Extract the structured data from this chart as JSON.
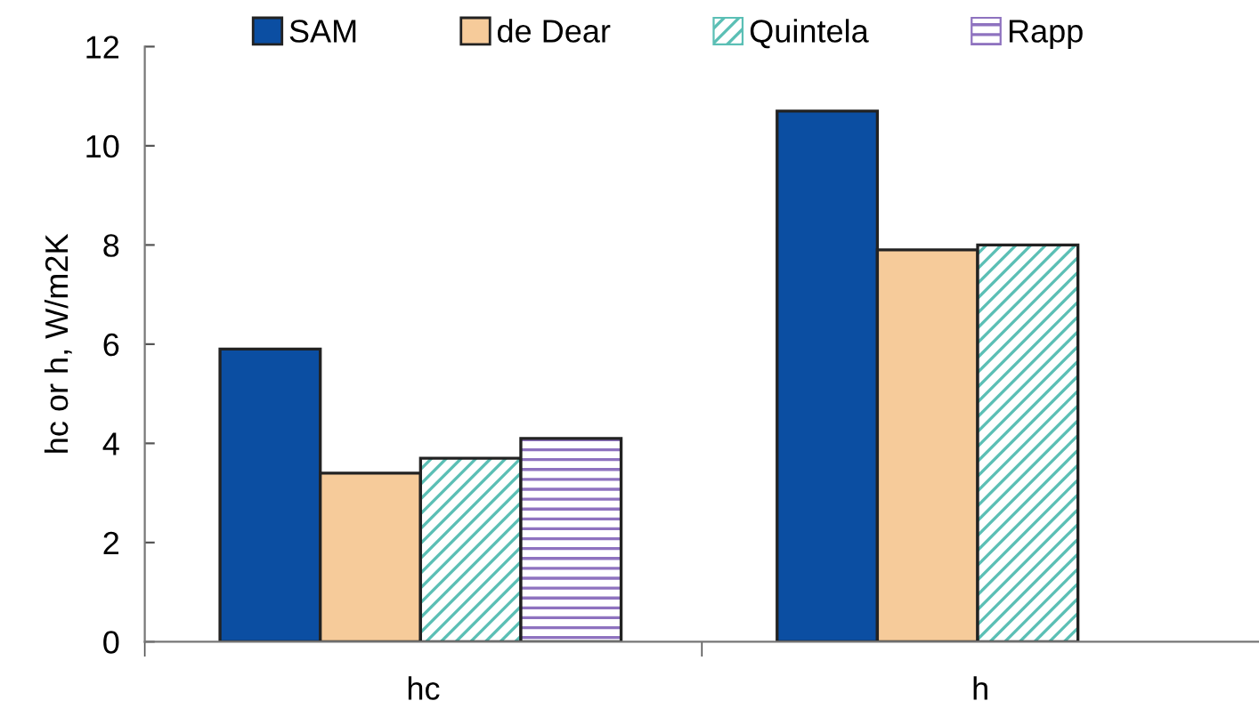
{
  "chart_data": {
    "type": "bar",
    "ylabel": "hc or h, W/m2K",
    "categories": [
      "hc",
      "h"
    ],
    "series": [
      {
        "name": "SAM",
        "color": "#0b4ea2",
        "values": [
          5.9,
          10.7
        ]
      },
      {
        "name": "de Dear",
        "color": "#f6cb9a",
        "values": [
          3.4,
          7.9
        ]
      },
      {
        "name": "Quintela",
        "color": "#5bbfb5",
        "values": [
          3.7,
          8.0
        ]
      },
      {
        "name": "Rapp",
        "color": "#8e72bf",
        "values": [
          4.1,
          null
        ]
      }
    ],
    "ylim": [
      0,
      12
    ],
    "yticks": [
      0,
      2,
      4,
      6,
      8,
      10,
      12
    ],
    "grid": false,
    "legend": "top"
  }
}
